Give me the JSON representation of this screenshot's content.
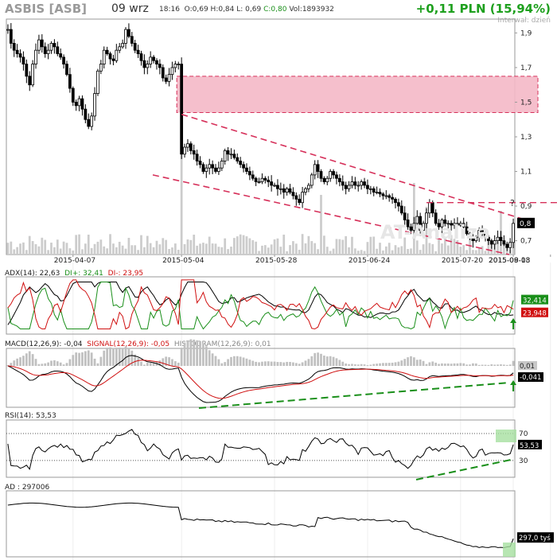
{
  "header": {
    "ticker": "ASBIS [ASB]",
    "date": "09 wrz",
    "time": "18:16",
    "open": "O:0,69",
    "high": "H:0,84",
    "low": "L: 0,69",
    "close": "C:0,80",
    "volume": "Vol:1893932",
    "change": "+0,11 PLN (15,94%)",
    "interval": "Interwał: dzień"
  },
  "colors": {
    "bull": "#ffffff",
    "bear": "#000000",
    "resistance_band": "#f4b8c6",
    "trendline": "#d6305a",
    "adx": "#000000",
    "di_plus": "#1a8f1a",
    "di_minus": "#d01010",
    "macd": "#000000",
    "signal": "#d01010",
    "histogram": "#c0c0c0",
    "support_dash": "#1a8f1a"
  },
  "chart_data": [
    {
      "type": "candlestick",
      "panel": "price",
      "x_tick_labels": [
        "2015-04-07",
        "2015-05-04",
        "2015-05-28",
        "2015-06-24",
        "2015-07-20",
        "2015-08-13",
        "2015-09-08"
      ],
      "y_tick_labels": [
        "1,9",
        "1,7",
        "1,5",
        "1,3",
        "1,1",
        "0,9",
        "0,7"
      ],
      "y_ticks": [
        1.9,
        1.7,
        1.5,
        1.3,
        1.1,
        0.9,
        0.7
      ],
      "ylim": [
        0.62,
        1.98
      ],
      "resistance_zone": [
        1.44,
        1.65
      ],
      "horizontal_level": 0.92,
      "last_price_label": "0,8",
      "question_mark": "?",
      "watermark": "AT-Analiza",
      "close_series": [
        1.92,
        1.84,
        1.8,
        1.78,
        1.76,
        1.72,
        1.65,
        1.6,
        1.72,
        1.8,
        1.86,
        1.82,
        1.78,
        1.8,
        1.84,
        1.82,
        1.78,
        1.76,
        1.72,
        1.66,
        1.58,
        1.5,
        1.48,
        1.52,
        1.46,
        1.4,
        1.36,
        1.42,
        1.55,
        1.68,
        1.72,
        1.8,
        1.78,
        1.75,
        1.74,
        1.8,
        1.82,
        1.84,
        1.92,
        1.88,
        1.84,
        1.8,
        1.78,
        1.74,
        1.7,
        1.72,
        1.76,
        1.74,
        1.72,
        1.7,
        1.64,
        1.62,
        1.66,
        1.7,
        1.72,
        1.72,
        1.2,
        1.24,
        1.26,
        1.22,
        1.2,
        1.16,
        1.14,
        1.1,
        1.12,
        1.14,
        1.12,
        1.1,
        1.12,
        1.16,
        1.22,
        1.2,
        1.2,
        1.18,
        1.16,
        1.14,
        1.12,
        1.1,
        1.08,
        1.06,
        1.04,
        1.04,
        1.06,
        1.05,
        1.04,
        1.02,
        1.02,
        1.0,
        1.0,
        0.98,
        1.0,
        0.98,
        0.96,
        0.94,
        0.92,
        0.98,
        1.0,
        1.02,
        1.08,
        1.14,
        1.1,
        1.06,
        1.04,
        1.06,
        1.1,
        1.08,
        1.06,
        1.04,
        1.02,
        1.0,
        1.02,
        1.04,
        1.02,
        1.02,
        1.04,
        1.02,
        1.0,
        1.0,
        0.98,
        0.98,
        0.97,
        0.96,
        0.96,
        0.95,
        0.94,
        0.92,
        0.9,
        0.86,
        0.82,
        0.78,
        0.76,
        0.8,
        0.84,
        0.76,
        0.8,
        0.86,
        0.92,
        0.86,
        0.8,
        0.78,
        0.82,
        0.8,
        0.8,
        0.79,
        0.8,
        0.79,
        0.8,
        0.78,
        0.74,
        0.72,
        0.7,
        0.72,
        0.76,
        0.74,
        0.72,
        0.7,
        0.68,
        0.7,
        0.72,
        0.7,
        0.68,
        0.66,
        0.69,
        0.8
      ]
    },
    {
      "type": "line",
      "panel": "ADX",
      "title": "ADX(14): 22,63",
      "series": [
        {
          "name": "DI+: 32,41",
          "last_label": "32,414"
        },
        {
          "name": "DI-: 23,95",
          "last_label": "23,948"
        }
      ]
    },
    {
      "type": "line",
      "panel": "MACD",
      "title": "MACD(12,26,9): -0,04",
      "series": [
        {
          "name": "SIGNAL(12,26,9): -0,05"
        },
        {
          "name": "HISTOGRAM(12,26,9): 0,01"
        }
      ],
      "labels": {
        "histogram_last": "0,01",
        "macd_last": "-0,041"
      }
    },
    {
      "type": "line",
      "panel": "RSI",
      "title": "RSI(14): 53,53",
      "levels": [
        70,
        30
      ],
      "level_labels": [
        "70",
        "30"
      ],
      "last_label": "53,53"
    },
    {
      "type": "line",
      "panel": "AD",
      "title": "AD : 297006",
      "last_label": "297,0 tyś"
    }
  ]
}
